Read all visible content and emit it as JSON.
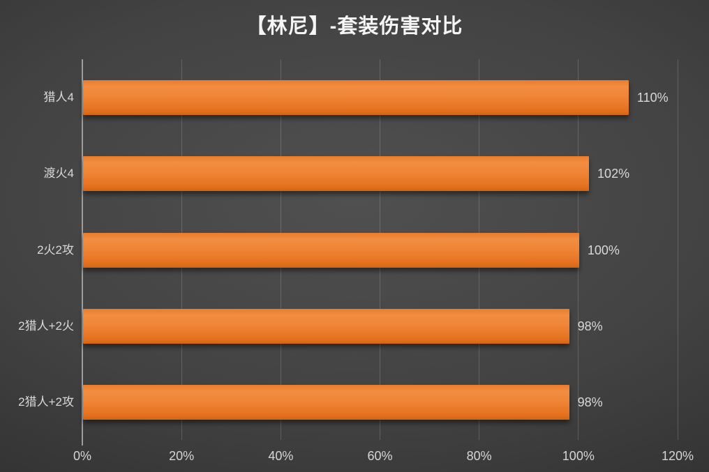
{
  "chart_data": {
    "type": "bar",
    "orientation": "horizontal",
    "title": "【林尼】-套装伤害对比",
    "categories": [
      "猎人4",
      "渡火4",
      "2火2攻",
      "2猎人+2火",
      "2猎人+2攻"
    ],
    "values": [
      110,
      102,
      100,
      98,
      98
    ],
    "value_labels": [
      "110%",
      "102%",
      "100%",
      "98%",
      "98%"
    ],
    "xlim": [
      0,
      120
    ],
    "x_ticks": [
      {
        "value": 0,
        "label": "0%"
      },
      {
        "value": 20,
        "label": "20%"
      },
      {
        "value": 40,
        "label": "40%"
      },
      {
        "value": 60,
        "label": "60%"
      },
      {
        "value": 80,
        "label": "80%"
      },
      {
        "value": 100,
        "label": "100%"
      },
      {
        "value": 120,
        "label": "120%"
      }
    ],
    "grid": "vertical-on",
    "legend": "none",
    "colors": {
      "bar": "#ED7D31",
      "bar_gradient_top": "#F28D41",
      "bar_gradient_bottom": "#D1660F",
      "background_center": "#505050",
      "background_corner": "#262626",
      "gridline": "#6E6E6E",
      "axis_line": "#9D9D9D",
      "text": "#D9D9D9",
      "title_text": "#F5F5F5"
    }
  }
}
